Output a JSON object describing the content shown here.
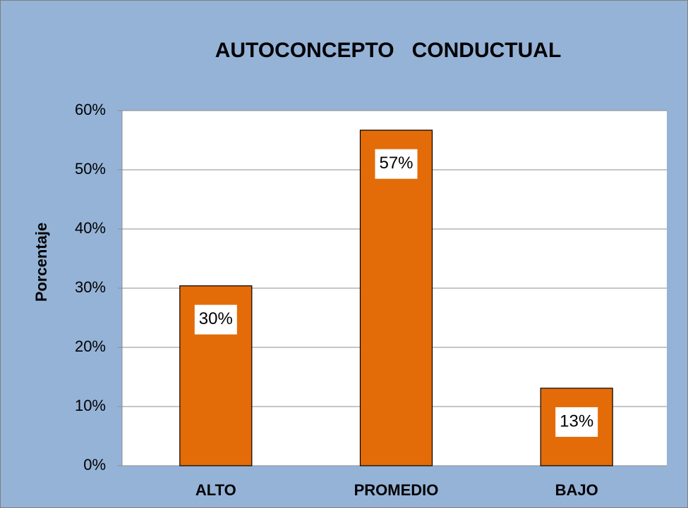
{
  "chart_data": {
    "type": "bar",
    "title": "AUTOCONCEPTO   CONDUCTUAL",
    "y_label": "Porcentaje",
    "categories": [
      "ALTO",
      "PROMEDIO",
      "BAJO"
    ],
    "values": [
      30.4,
      56.7,
      13.1
    ],
    "value_labels": [
      "30%",
      "57%",
      "13%"
    ],
    "color": "#e36c09",
    "ylim": [
      0,
      60
    ],
    "yticks": [
      {
        "value": 0,
        "label": "0%"
      },
      {
        "value": 10,
        "label": "10%"
      },
      {
        "value": 20,
        "label": "20%"
      },
      {
        "value": 30,
        "label": "30%"
      },
      {
        "value": 40,
        "label": "40%"
      },
      {
        "value": 50,
        "label": "50%"
      },
      {
        "value": 60,
        "label": "60%"
      }
    ],
    "grid": true
  }
}
